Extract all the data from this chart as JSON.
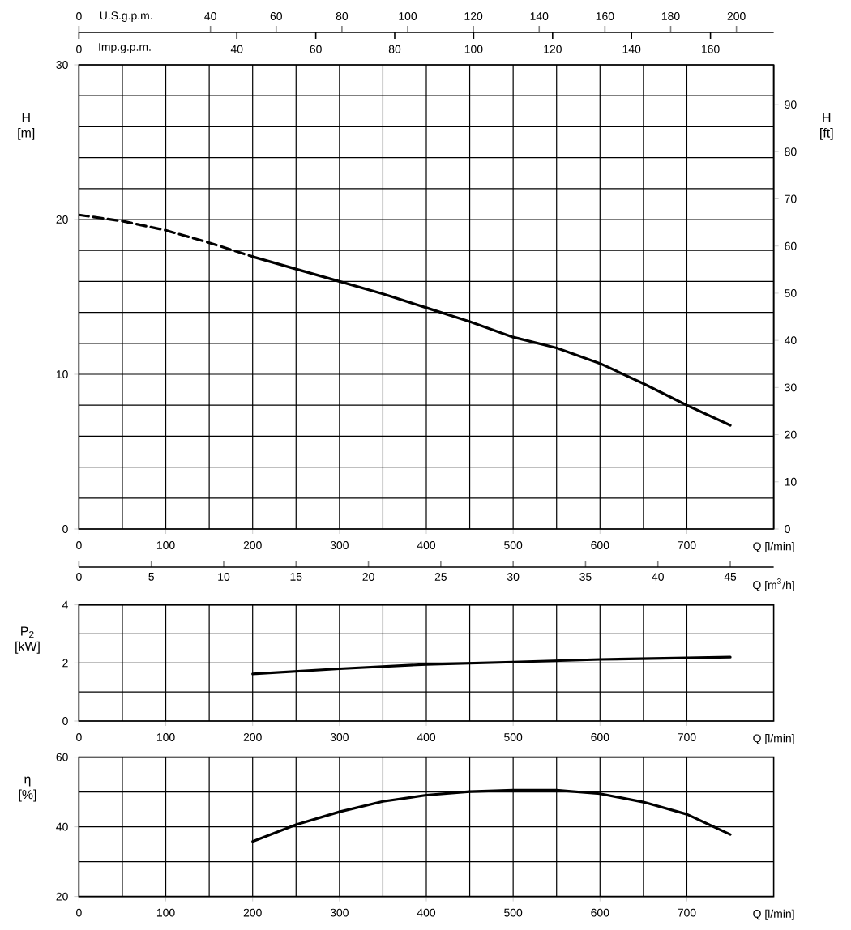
{
  "chart_data": [
    {
      "type": "line",
      "xlabel": "Q [l/min]",
      "ylabel": "H [m]",
      "y2label": "H [ft]",
      "x2label": "U.S.g.p.m.",
      "xlim": [
        0,
        800
      ],
      "xticks": [
        0,
        100,
        200,
        300,
        400,
        500,
        600,
        700
      ],
      "ylim": [
        0,
        30
      ],
      "yticks": [
        0,
        10,
        20,
        30
      ],
      "y2lim": [
        0,
        98.43
      ],
      "y2ticks": [
        0,
        10,
        20,
        30,
        40,
        50,
        60,
        70,
        80,
        90
      ],
      "x2lim": [
        0,
        211.34
      ],
      "x2ticks": [
        0,
        40,
        60,
        80,
        100,
        120,
        140,
        160,
        180,
        200
      ],
      "grid": true,
      "annotations": [
        "Imp.g.p.m.",
        "0",
        "40",
        "60",
        "80",
        "100",
        "120",
        "140",
        "160"
      ],
      "series": [
        {
          "color": "#000000",
          "line_style": "dashed",
          "x": [
            0,
            50,
            100,
            150,
            200
          ],
          "values": [
            20.3,
            19.9,
            19.3,
            18.5,
            17.6
          ]
        },
        {
          "color": "#000000",
          "line_style": "solid",
          "x": [
            200,
            250,
            300,
            350,
            400,
            450,
            500,
            550,
            600,
            650,
            700,
            750
          ],
          "values": [
            17.6,
            16.8,
            16.0,
            15.2,
            14.3,
            13.4,
            12.4,
            11.7,
            10.7,
            9.4,
            8.0,
            6.7
          ]
        }
      ]
    },
    {
      "type": "line",
      "xlabel": "Q [l/min]",
      "ylabel": "P$_{2}$ [kW]",
      "x2label": "Q [m$^{3}$/h]",
      "xlim": [
        0,
        800
      ],
      "xticks": [
        0,
        100,
        200,
        300,
        400,
        500,
        600,
        700
      ],
      "x2lim": [
        0,
        48
      ],
      "x2ticks": [
        0,
        5,
        10,
        15,
        20,
        25,
        30,
        35,
        40,
        45
      ],
      "ylim": [
        0,
        4
      ],
      "yticks": [
        0,
        2,
        4
      ],
      "grid": true,
      "series": [
        {
          "color": "#000000",
          "x": [
            200,
            300,
            400,
            500,
            600,
            700,
            750
          ],
          "values": [
            1.62,
            1.8,
            1.95,
            2.03,
            2.12,
            2.17,
            2.2
          ]
        }
      ]
    },
    {
      "type": "line",
      "xlabel": "Q [l/min]",
      "ylabel": "η [%]",
      "xlim": [
        0,
        800
      ],
      "xticks": [
        0,
        100,
        200,
        300,
        400,
        500,
        600,
        700
      ],
      "ylim": [
        20,
        60
      ],
      "yticks": [
        20,
        40,
        60
      ],
      "grid": true,
      "series": [
        {
          "color": "#000000",
          "x": [
            200,
            250,
            300,
            350,
            400,
            450,
            500,
            550,
            600,
            650,
            700,
            750
          ],
          "values": [
            35.8,
            40.6,
            44.3,
            47.3,
            49.1,
            50.1,
            50.5,
            50.5,
            49.5,
            47.1,
            43.6,
            37.8
          ]
        }
      ]
    }
  ]
}
